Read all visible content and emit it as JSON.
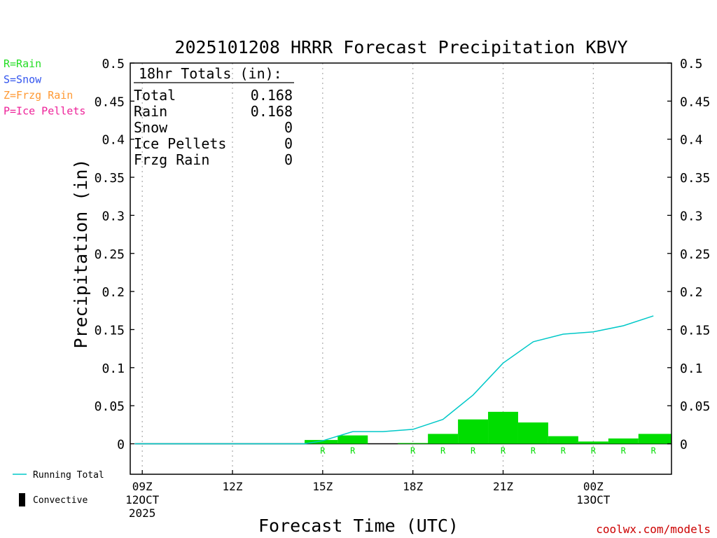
{
  "chart_data": {
    "type": "bar",
    "title": "2025101208 HRRR Forecast Precipitation KBVY",
    "xlabel": "Forecast Time (UTC)",
    "ylabel": "Precipitation (in)",
    "ylim": [
      -0.04,
      0.5
    ],
    "xlim": [
      8.6,
      26.6
    ],
    "yticks": [
      0,
      0.05,
      0.1,
      0.15,
      0.2,
      0.25,
      0.3,
      0.35,
      0.4,
      0.45,
      0.5
    ],
    "ytick_labels": [
      "0",
      "0.05",
      "0.1",
      "0.15",
      "0.2",
      "0.25",
      "0.3",
      "0.35",
      "0.4",
      "0.45",
      "0.5"
    ],
    "xticks": [
      {
        "x": 9,
        "lines": [
          "09Z",
          "12OCT",
          "2025"
        ]
      },
      {
        "x": 12,
        "lines": [
          "12Z"
        ]
      },
      {
        "x": 15,
        "lines": [
          "15Z"
        ]
      },
      {
        "x": 18,
        "lines": [
          "18Z"
        ]
      },
      {
        "x": 21,
        "lines": [
          "21Z"
        ]
      },
      {
        "x": 24,
        "lines": [
          "00Z",
          "13OCT"
        ]
      }
    ],
    "grid_x": [
      9,
      12,
      15,
      18,
      21,
      24
    ],
    "bars": {
      "name": "Rain",
      "color": "#00dd00",
      "start": [
        14.4,
        15.5,
        16.5,
        17.5,
        18.5,
        19.5,
        20.5,
        21.5,
        22.5,
        23.5,
        24.5,
        25.5
      ],
      "end": [
        15.5,
        16.5,
        17.5,
        18.5,
        19.5,
        20.5,
        21.5,
        22.5,
        23.5,
        24.5,
        25.5,
        26.6
      ],
      "values": [
        0.005,
        0.011,
        0.0,
        0.001,
        0.013,
        0.032,
        0.042,
        0.028,
        0.01,
        0.003,
        0.007,
        0.013
      ]
    },
    "running_total": {
      "name": "Running Total",
      "color": "#00c8c8",
      "x": [
        8.75,
        14.4,
        15.0,
        16.0,
        17.0,
        18.0,
        19.0,
        20.0,
        21.0,
        22.0,
        23.0,
        24.0,
        25.0,
        26.0
      ],
      "values": [
        0,
        0,
        0.004,
        0.016,
        0.016,
        0.019,
        0.032,
        0.064,
        0.106,
        0.134,
        0.144,
        0.147,
        0.155,
        0.168
      ]
    },
    "ptype_markers": {
      "x": [
        15,
        16,
        18,
        19,
        20,
        21,
        22,
        23,
        24,
        25,
        26
      ],
      "labels": [
        "R",
        "R",
        "R",
        "R",
        "R",
        "R",
        "R",
        "R",
        "R",
        "R",
        "R"
      ],
      "color": "#00dd00"
    },
    "totals_box": {
      "header": "18hr Totals (in):",
      "rows": [
        {
          "label": "Total",
          "value": "0.168"
        },
        {
          "label": "Rain",
          "value": "0.168"
        },
        {
          "label": "Snow",
          "value": "0"
        },
        {
          "label": "Ice Pellets",
          "value": "0"
        },
        {
          "label": "Frzg Rain",
          "value": "0"
        }
      ]
    },
    "ptype_legend": [
      {
        "text": "R=Rain",
        "color": "#22dd22"
      },
      {
        "text": "S=Snow",
        "color": "#3355ee"
      },
      {
        "text": "Z=Frzg Rain",
        "color": "#ff9933"
      },
      {
        "text": "P=Ice Pellets",
        "color": "#ee2299"
      }
    ],
    "series_legend": [
      {
        "text": "Running Total",
        "symbol": "line",
        "color": "#00c8c8"
      },
      {
        "text": "Convective",
        "symbol": "block",
        "color": "#000000"
      }
    ],
    "credit": {
      "text": "coolwx.com/models",
      "color": "#cc0000"
    }
  }
}
